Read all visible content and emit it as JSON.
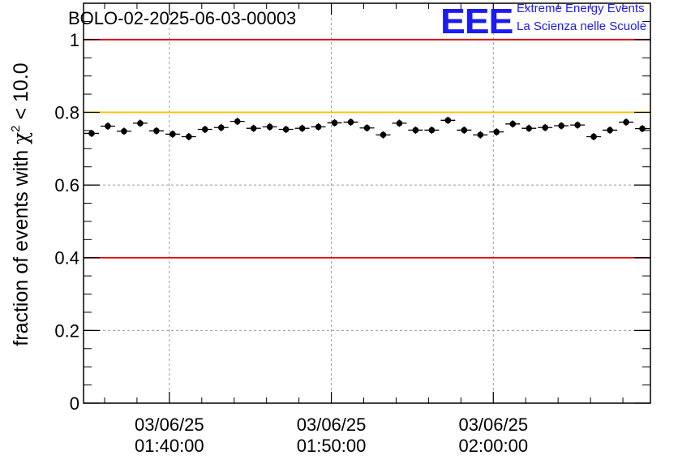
{
  "header": {
    "run_title": "BOLO-02-2025-06-03-00003",
    "logo_text": "EEE",
    "logo_line1": "Extreme Energy Events",
    "logo_line2": "La Scienza nelle Scuole",
    "logo_color": "#1c1cf0"
  },
  "chart_data": {
    "type": "scatter",
    "title": "BOLO-02-2025-06-03-00003",
    "ylabel_prefix": "fraction of events with ",
    "ylabel_chi": "χ",
    "ylabel_exp": "2",
    "ylabel_suffix": " < 10.0",
    "xlabel": "",
    "ylim": [
      0,
      1.1
    ],
    "y_ticks": [
      "0",
      "0.2",
      "0.4",
      "0.6",
      "0.8",
      "1"
    ],
    "y_tick_values": [
      0,
      0.2,
      0.4,
      0.6,
      0.8,
      1.0
    ],
    "x_range_minutes": [
      94.7,
      129.7
    ],
    "x_tick_minutes": [
      100,
      110,
      120
    ],
    "x_tick_labels": [
      [
        "03/06/25",
        "01:40:00"
      ],
      [
        "03/06/25",
        "01:50:00"
      ],
      [
        "03/06/25",
        "02:00:00"
      ]
    ],
    "reference_lines": [
      {
        "y": 1.0,
        "color": "#e00000"
      },
      {
        "y": 0.8,
        "color": "#ffc000"
      },
      {
        "y": 0.4,
        "color": "#e00000"
      }
    ],
    "grid": true,
    "bin_width_minutes": 1.0,
    "series": [
      {
        "name": "fraction",
        "x_minutes": [
          95.2,
          96.2,
          97.2,
          98.2,
          99.2,
          100.2,
          101.2,
          102.2,
          103.2,
          104.2,
          105.2,
          106.2,
          107.2,
          108.2,
          109.2,
          110.2,
          111.2,
          112.2,
          113.2,
          114.2,
          115.2,
          116.2,
          117.2,
          118.2,
          119.2,
          120.2,
          121.2,
          122.2,
          123.2,
          124.2,
          125.2,
          126.2,
          127.2,
          128.2,
          129.2
        ],
        "values": [
          0.742,
          0.762,
          0.748,
          0.77,
          0.749,
          0.74,
          0.733,
          0.753,
          0.758,
          0.775,
          0.756,
          0.76,
          0.753,
          0.756,
          0.76,
          0.771,
          0.773,
          0.757,
          0.738,
          0.77,
          0.751,
          0.751,
          0.778,
          0.751,
          0.738,
          0.746,
          0.768,
          0.756,
          0.758,
          0.763,
          0.765,
          0.733,
          0.751,
          0.773,
          0.755
        ],
        "errors": [
          0.01,
          0.01,
          0.01,
          0.01,
          0.01,
          0.01,
          0.01,
          0.01,
          0.01,
          0.01,
          0.01,
          0.01,
          0.01,
          0.01,
          0.01,
          0.01,
          0.01,
          0.01,
          0.01,
          0.01,
          0.01,
          0.01,
          0.01,
          0.01,
          0.01,
          0.01,
          0.01,
          0.01,
          0.01,
          0.01,
          0.01,
          0.01,
          0.01,
          0.01,
          0.01
        ]
      }
    ]
  }
}
